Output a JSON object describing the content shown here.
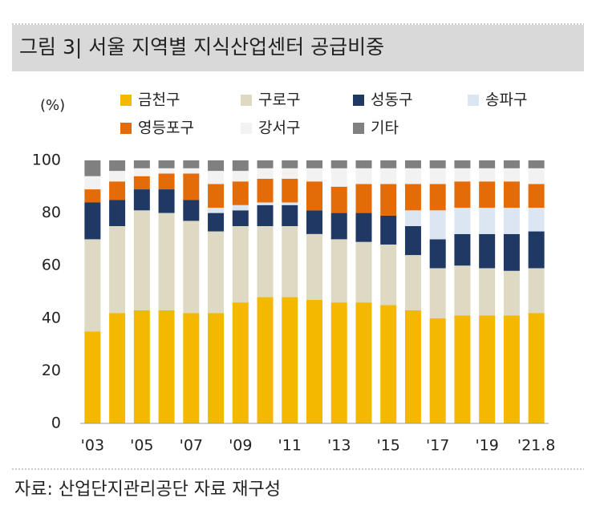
{
  "chart_data": {
    "type": "stacked_bar",
    "title": "그림 3| 서울 지역별 지식산업센터 공급비중",
    "y_label": "(%)",
    "source": "자료: 산업단지관리공단 자료 재구성",
    "categories": [
      "'03",
      null,
      "'05",
      null,
      "'07",
      null,
      "'09",
      null,
      "'11",
      null,
      "'13",
      null,
      "'15",
      null,
      "'17",
      null,
      "'19",
      null,
      "'21.8"
    ],
    "series": [
      {
        "name": "금천구",
        "color": "#f5b800",
        "values": [
          35,
          42,
          43,
          43,
          42,
          42,
          46,
          48,
          48,
          47,
          46,
          46,
          45,
          43,
          40,
          41,
          41,
          41,
          42
        ]
      },
      {
        "name": "구로구",
        "color": "#ddd9c3",
        "values": [
          35,
          33,
          38,
          37,
          35,
          31,
          29,
          27,
          27,
          25,
          24,
          23,
          23,
          21,
          19,
          19,
          18,
          17,
          17
        ]
      },
      {
        "name": "성동구",
        "color": "#1f3864",
        "values": [
          14,
          10,
          8,
          9,
          8,
          7,
          6,
          8,
          8,
          9,
          10,
          11,
          11,
          11,
          11,
          12,
          13,
          14,
          14
        ]
      },
      {
        "name": "송파구",
        "color": "#dce6f2",
        "values": [
          0,
          0,
          0,
          0,
          0,
          2,
          2,
          1,
          1,
          0,
          0,
          0,
          0,
          6,
          11,
          10,
          10,
          10,
          9
        ]
      },
      {
        "name": "영등포구",
        "color": "#e36c09",
        "values": [
          5,
          7,
          5,
          6,
          10,
          9,
          9,
          9,
          9,
          11,
          10,
          11,
          12,
          10,
          10,
          10,
          10,
          10,
          9
        ]
      },
      {
        "name": "강서구",
        "color": "#f2f2f2",
        "values": [
          5,
          4,
          3,
          2,
          2,
          5,
          4,
          4,
          4,
          5,
          7,
          6,
          6,
          6,
          6,
          5,
          5,
          5,
          6
        ]
      },
      {
        "name": "기타",
        "color": "#808080",
        "values": [
          6,
          4,
          3,
          3,
          3,
          4,
          4,
          3,
          3,
          3,
          3,
          3,
          3,
          3,
          3,
          3,
          3,
          3,
          3
        ]
      }
    ],
    "ylim": [
      0,
      100
    ],
    "yticks": [
      0,
      20,
      40,
      60,
      80,
      100
    ],
    "grid": false
  }
}
